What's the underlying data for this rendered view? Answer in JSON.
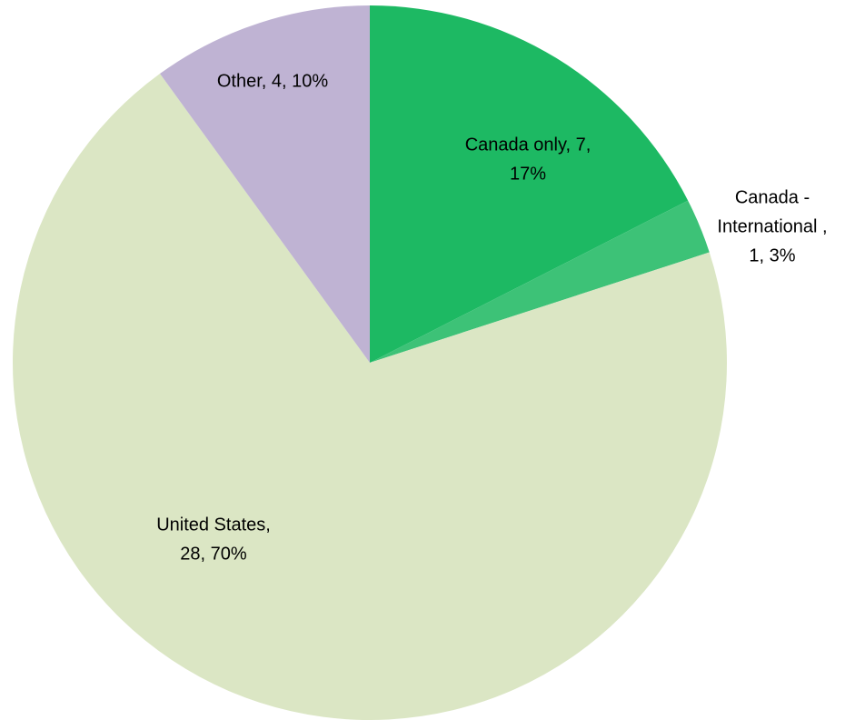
{
  "chart_data": {
    "type": "pie",
    "values": [
      7,
      1,
      28,
      4
    ],
    "value_labels": [
      [
        "Canada only, 7,",
        "17%"
      ],
      [
        "Canada -",
        "International ,",
        "1, 3%"
      ],
      [
        "United States,",
        "28, 70%"
      ],
      [
        "Other, 4, 10%"
      ]
    ],
    "colors": [
      "#1db963",
      "#3dc277",
      "#dbe6c4",
      "#bfb3d3"
    ],
    "start_angle": 0,
    "direction": "clockwise"
  }
}
